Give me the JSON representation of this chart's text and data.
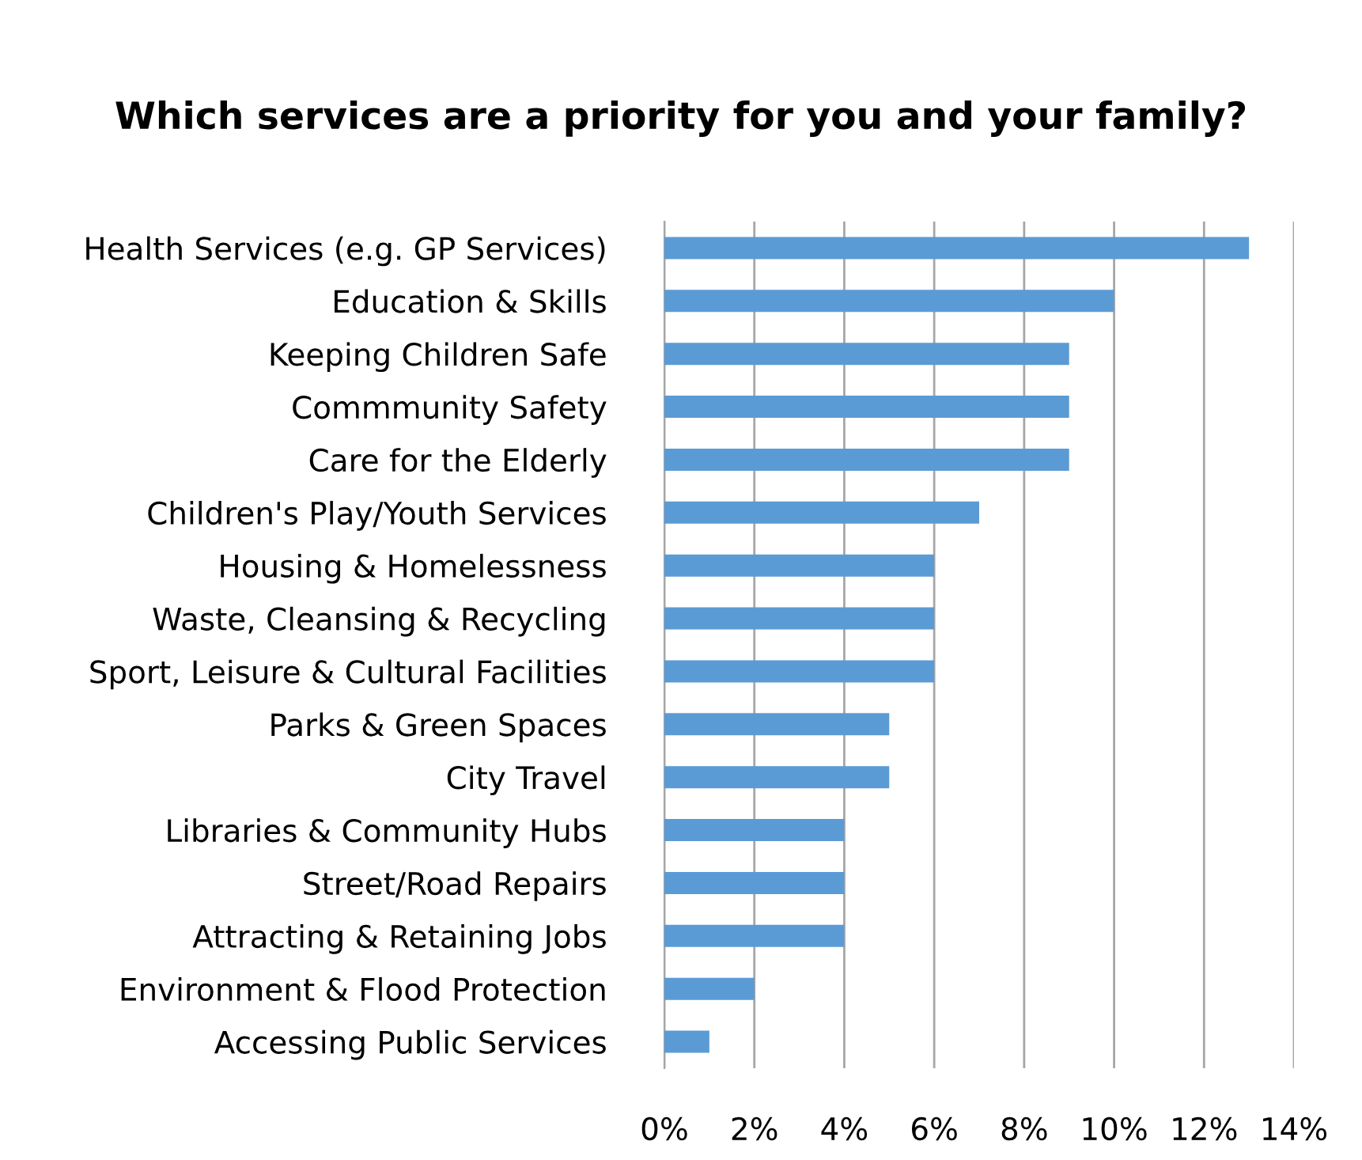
{
  "chart_data": {
    "type": "bar",
    "orientation": "horizontal",
    "title": "Which services are a priority for you and your family?",
    "categories": [
      "Health Services (e.g. GP Services)",
      "Education & Skills",
      "Keeping Children Safe",
      "Commmunity Safety",
      "Care for the Elderly",
      "Children's Play/Youth Services",
      "Housing & Homelessness",
      "Waste, Cleansing & Recycling",
      "Sport, Leisure & Cultural Facilities",
      "Parks & Green Spaces",
      "City Travel",
      "Libraries & Community Hubs",
      "Street/Road Repairs",
      "Attracting & Retaining Jobs",
      "Environment & Flood Protection",
      "Accessing Public Services"
    ],
    "values": [
      13,
      10,
      9,
      9,
      9,
      7,
      6,
      6,
      6,
      5,
      5,
      4,
      4,
      4,
      2,
      1
    ],
    "color": "#5b9bd5",
    "xlim": [
      0,
      14
    ],
    "xticks": [
      {
        "value": 0,
        "label": "0%"
      },
      {
        "value": 2,
        "label": "2%"
      },
      {
        "value": 4,
        "label": "4%"
      },
      {
        "value": 6,
        "label": "6%"
      },
      {
        "value": 8,
        "label": "8%"
      },
      {
        "value": 10,
        "label": "10%"
      },
      {
        "value": 12,
        "label": "12%"
      },
      {
        "value": 14,
        "label": "14%"
      }
    ],
    "grid": "x",
    "legend": false
  }
}
